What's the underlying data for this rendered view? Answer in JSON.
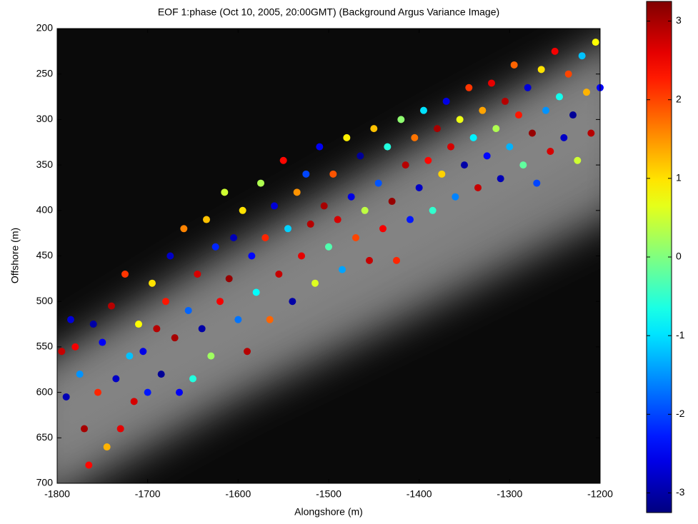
{
  "chart_data": {
    "type": "scatter",
    "title": "EOF 1:phase (Oct 10, 2005, 20:00GMT) (Background Argus Variance Image)",
    "x_label": "Alongshore (m)",
    "y_label": "Offshore (m)",
    "xlim": [
      -1800,
      -1200
    ],
    "xticks": [
      -1800,
      -1700,
      -1600,
      -1500,
      -1400,
      -1300,
      -1200
    ],
    "ylim": [
      200,
      700
    ],
    "y_reversed": true,
    "yticks": [
      200,
      250,
      300,
      350,
      400,
      450,
      500,
      550,
      600,
      650,
      700
    ],
    "clim": [
      -3.25,
      3.25
    ],
    "cticks": [
      3,
      2,
      1,
      0,
      -1,
      -2,
      -3
    ],
    "colormap": "jet",
    "x": [
      -1795,
      -1790,
      -1785,
      -1780,
      -1775,
      -1770,
      -1765,
      -1760,
      -1755,
      -1750,
      -1745,
      -1740,
      -1735,
      -1730,
      -1725,
      -1720,
      -1715,
      -1710,
      -1705,
      -1700,
      -1695,
      -1690,
      -1685,
      -1680,
      -1675,
      -1670,
      -1665,
      -1660,
      -1655,
      -1650,
      -1645,
      -1640,
      -1635,
      -1630,
      -1625,
      -1620,
      -1615,
      -1610,
      -1605,
      -1600,
      -1595,
      -1590,
      -1585,
      -1580,
      -1575,
      -1570,
      -1565,
      -1560,
      -1555,
      -1550,
      -1545,
      -1540,
      -1535,
      -1530,
      -1525,
      -1520,
      -1515,
      -1510,
      -1505,
      -1500,
      -1495,
      -1490,
      -1485,
      -1480,
      -1475,
      -1470,
      -1465,
      -1460,
      -1455,
      -1450,
      -1445,
      -1440,
      -1435,
      -1430,
      -1425,
      -1420,
      -1415,
      -1410,
      -1405,
      -1400,
      -1395,
      -1390,
      -1385,
      -1380,
      -1375,
      -1370,
      -1365,
      -1360,
      -1355,
      -1350,
      -1345,
      -1340,
      -1335,
      -1330,
      -1325,
      -1320,
      -1315,
      -1310,
      -1305,
      -1300,
      -1295,
      -1290,
      -1285,
      -1280,
      -1275,
      -1270,
      -1265,
      -1260,
      -1255,
      -1250,
      -1245,
      -1240,
      -1235,
      -1230,
      -1225,
      -1220,
      -1215,
      -1210,
      -1205,
      -1200
    ],
    "y": [
      555,
      605,
      520,
      550,
      580,
      640,
      680,
      525,
      600,
      545,
      660,
      505,
      585,
      640,
      470,
      560,
      610,
      525,
      555,
      600,
      480,
      530,
      580,
      500,
      450,
      540,
      600,
      420,
      510,
      585,
      470,
      530,
      410,
      560,
      440,
      500,
      380,
      475,
      430,
      520,
      400,
      555,
      450,
      490,
      370,
      430,
      520,
      395,
      470,
      345,
      420,
      500,
      380,
      450,
      360,
      415,
      480,
      330,
      395,
      440,
      360,
      410,
      465,
      320,
      385,
      430,
      340,
      400,
      455,
      310,
      370,
      420,
      330,
      390,
      455,
      300,
      350,
      410,
      320,
      375,
      290,
      345,
      400,
      310,
      360,
      280,
      330,
      385,
      300,
      350,
      265,
      320,
      375,
      290,
      340,
      260,
      310,
      365,
      280,
      330,
      240,
      295,
      350,
      265,
      315,
      370,
      245,
      290,
      335,
      225,
      275,
      320,
      250,
      295,
      345,
      230,
      270,
      315,
      215,
      265
    ],
    "values": [
      2.8,
      -2.9,
      -2.7,
      2.5,
      -1.5,
      3.0,
      2.4,
      -3.0,
      2.2,
      -2.5,
      1.3,
      2.9,
      -2.8,
      2.6,
      2.1,
      -1.2,
      2.7,
      0.8,
      -2.6,
      -2.3,
      1.0,
      2.9,
      -3.1,
      2.3,
      -2.8,
      3.0,
      -2.5,
      1.6,
      -1.8,
      -0.6,
      2.7,
      -3.0,
      1.2,
      0.2,
      -2.2,
      2.5,
      0.5,
      3.1,
      -2.9,
      -1.7,
      1.0,
      2.9,
      -2.4,
      -0.8,
      0.3,
      2.2,
      1.8,
      -2.7,
      2.8,
      2.4,
      -1.1,
      -3.0,
      1.5,
      2.6,
      -2.0,
      2.9,
      0.6,
      -2.5,
      3.0,
      -0.3,
      1.9,
      2.7,
      -1.4,
      0.9,
      -2.6,
      2.0,
      -3.1,
      0.4,
      2.8,
      1.2,
      -1.9,
      2.5,
      -0.6,
      3.1,
      2.2,
      0.1,
      2.9,
      -2.3,
      1.7,
      -2.8,
      -1.0,
      2.4,
      -0.5,
      3.0,
      1.1,
      -2.6,
      2.7,
      -1.6,
      0.7,
      -3.0,
      2.1,
      -0.9,
      2.8,
      1.4,
      -2.4,
      2.6,
      0.3,
      -2.9,
      2.9,
      -1.3,
      1.8,
      2.3,
      -0.2,
      -2.7,
      3.1,
      -2.0,
      1.0,
      -1.5,
      2.7,
      2.5,
      -0.7,
      -2.8,
      2.0,
      -3.1,
      0.5,
      -1.2,
      1.3,
      2.9,
      0.8,
      -2.5
    ]
  }
}
